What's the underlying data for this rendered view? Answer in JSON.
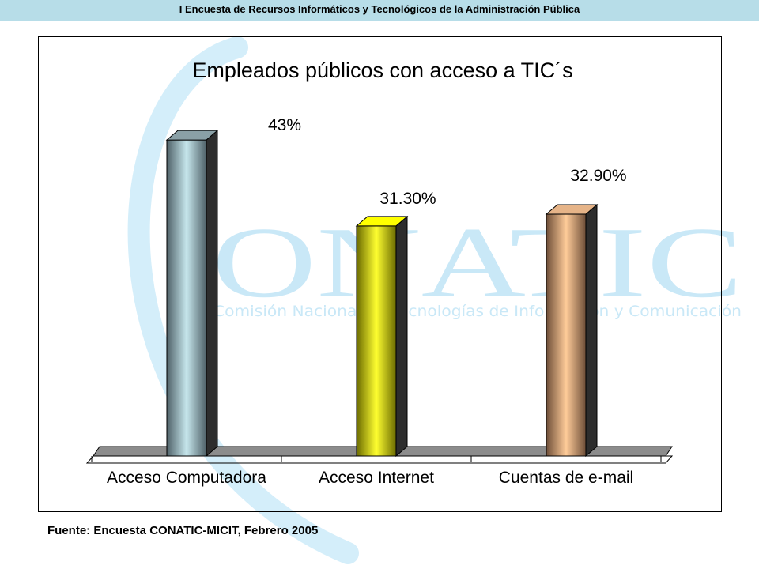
{
  "header": {
    "title": "I Encuesta de Recursos Informáticos y Tecnológicos de la Administración Pública"
  },
  "watermark": {
    "logo_text": "ONATIC",
    "tagline": "Comisión Nacional de Tecnologías de Información y Comunicación",
    "color": "#c9e8f7"
  },
  "chart_data": {
    "type": "bar",
    "title": "Empleados públicos con acceso a TIC´s",
    "categories": [
      "Acceso Computadora",
      "Acceso Internet",
      "Cuentas de e-mail"
    ],
    "values": [
      43,
      31.3,
      32.9
    ],
    "data_labels": [
      "43%",
      "31.30%",
      "32.90%"
    ],
    "colors": [
      "#8aa0a6",
      "#ffff00",
      "#e6b488"
    ],
    "ylim": [
      0,
      45
    ],
    "grid": false,
    "legend": "none",
    "style": "3d-column"
  },
  "footer": {
    "source": "Fuente: Encuesta CONATIC-MICIT, Febrero 2005"
  }
}
